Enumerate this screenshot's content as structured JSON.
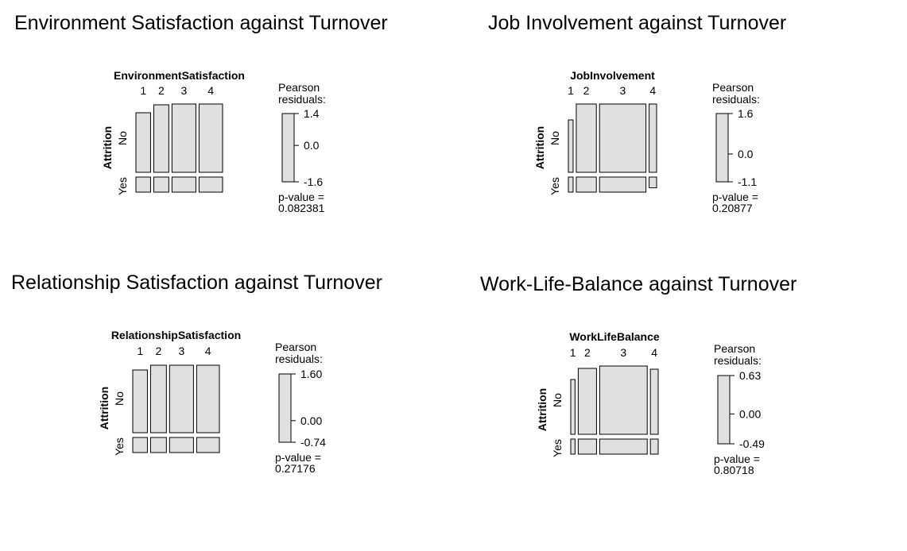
{
  "chart_data": [
    {
      "type": "mosaic",
      "title": "Environment Satisfaction against Turnover",
      "x_variable": "EnvironmentSatisfaction",
      "y_variable": "Attrition",
      "categories": [
        "1",
        "2",
        "3",
        "4"
      ],
      "row_levels": [
        "No",
        "Yes"
      ],
      "column_proportions": [
        0.19,
        0.195,
        0.31,
        0.305
      ],
      "no_proportions": [
        0.75,
        0.85,
        0.86,
        0.86
      ],
      "legend": {
        "title_line1": "Pearson",
        "title_line2": "residuals:",
        "max": 1.4,
        "max_label": "1.4",
        "mid_label": "0.0",
        "min": -1.6,
        "min_label": "-1.6"
      },
      "p_value_label": "p-value =",
      "p_value": "0.082381"
    },
    {
      "type": "mosaic",
      "title": "Job Involvement against Turnover",
      "x_variable": "JobInvolvement",
      "y_variable": "Attrition",
      "categories": [
        "1",
        "2",
        "3",
        "4"
      ],
      "row_levels": [
        "No",
        "Yes"
      ],
      "column_proportions": [
        0.06,
        0.255,
        0.59,
        0.095
      ],
      "no_proportions": [
        0.66,
        0.86,
        0.86,
        0.9
      ],
      "legend": {
        "title_line1": "Pearson",
        "title_line2": "residuals:",
        "max": 1.6,
        "max_label": "1.6",
        "mid_label": "0.0",
        "min": -1.1,
        "min_label": "-1.1"
      },
      "p_value_label": "p-value =",
      "p_value": "0.20877"
    },
    {
      "type": "mosaic",
      "title": "Relationship Satisfaction against Turnover",
      "x_variable": "RelationshipSatisfaction",
      "y_variable": "Attrition",
      "categories": [
        "1",
        "2",
        "3",
        "4"
      ],
      "row_levels": [
        "No",
        "Yes"
      ],
      "column_proportions": [
        0.19,
        0.205,
        0.31,
        0.295
      ],
      "no_proportions": [
        0.79,
        0.85,
        0.85,
        0.85
      ],
      "legend": {
        "title_line1": "Pearson",
        "title_line2": "residuals:",
        "max": 1.6,
        "max_label": "1.60",
        "mid_label": "0.00",
        "min": -0.74,
        "min_label": "-0.74"
      },
      "p_value_label": "p-value =",
      "p_value": "0.27176"
    },
    {
      "type": "mosaic",
      "title": "Work-Life-Balance against Turnover",
      "x_variable": "WorkLifeBalance",
      "y_variable": "Attrition",
      "categories": [
        "1",
        "2",
        "3",
        "4"
      ],
      "row_levels": [
        "No",
        "Yes"
      ],
      "column_proportions": [
        0.055,
        0.235,
        0.61,
        0.1
      ],
      "no_proportions": [
        0.69,
        0.83,
        0.86,
        0.82
      ],
      "legend": {
        "title_line1": "Pearson",
        "title_line2": "residuals:",
        "max": 0.63,
        "max_label": "0.63",
        "mid_label": "0.00",
        "min": -0.49,
        "min_label": "-0.49"
      },
      "p_value_label": "p-value =",
      "p_value": "0.80718"
    }
  ]
}
